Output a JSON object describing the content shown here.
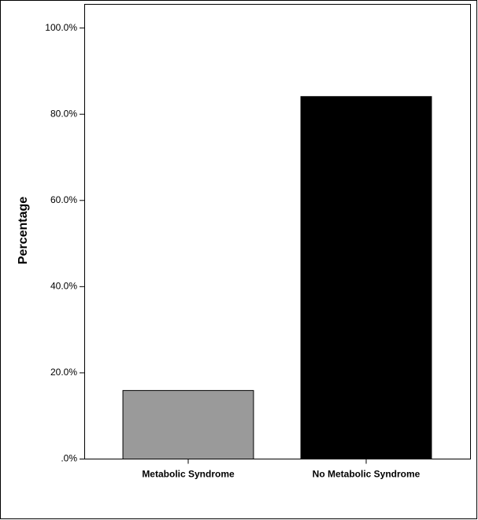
{
  "chart_data": {
    "type": "bar",
    "y_label": "Percentage",
    "categories": [
      "Metabolic Syndrome",
      "No Metabolic Syndrome"
    ],
    "values": [
      15.9,
      84.1
    ],
    "colors": [
      "#9a9a9a",
      "#000000"
    ],
    "ylim": [
      0,
      105.5
    ],
    "yticks": [
      {
        "value": 0,
        "label": ".0%"
      },
      {
        "value": 20,
        "label": "20.0%"
      },
      {
        "value": 40,
        "label": "40.0%"
      },
      {
        "value": 60,
        "label": "60.0%"
      },
      {
        "value": 80,
        "label": "80.0%"
      },
      {
        "value": 100,
        "label": "100.0%"
      }
    ]
  }
}
